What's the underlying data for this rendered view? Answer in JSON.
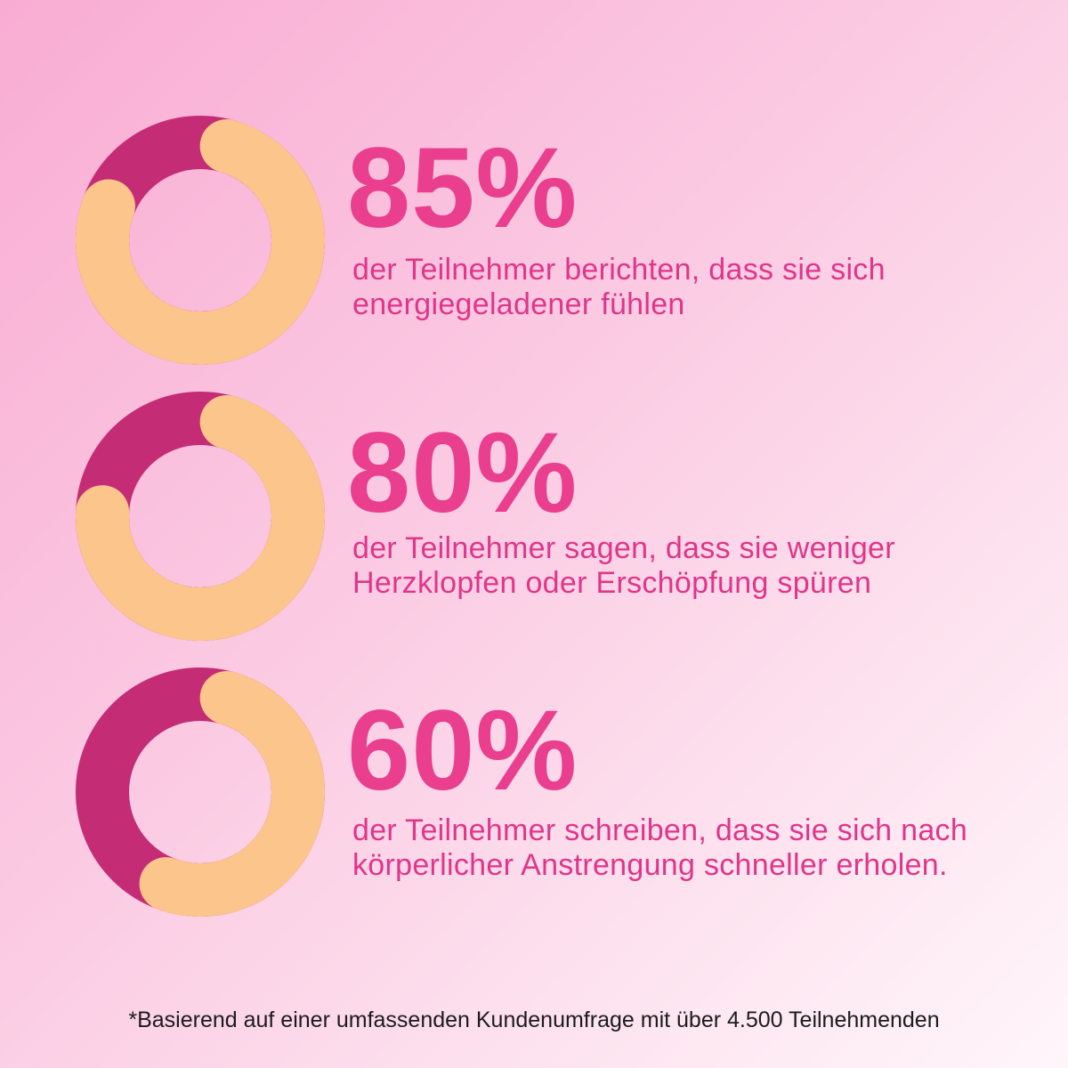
{
  "colors": {
    "filled": "#c42c75",
    "remaining": "#fbc58c",
    "accent": "#e93f8e"
  },
  "chart_data": [
    {
      "type": "pie",
      "values": [
        85
      ],
      "label": "85%",
      "description": "der Teilnehmer berichten, dass sie sich energiegeladener fühlen"
    },
    {
      "type": "pie",
      "values": [
        80
      ],
      "label": "80%",
      "description": "der Teilnehmer sagen, dass sie weniger Herzklopfen oder Erschöpfung spüren"
    },
    {
      "type": "pie",
      "values": [
        60
      ],
      "label": "60%",
      "description": "der Teilnehmer schreiben, dass sie sich nach körperlicher Anstrengung schneller erholen."
    }
  ],
  "footnote": "*Basierend auf einer umfassenden Kundenumfrage mit über 4.500 Teilnehmenden"
}
